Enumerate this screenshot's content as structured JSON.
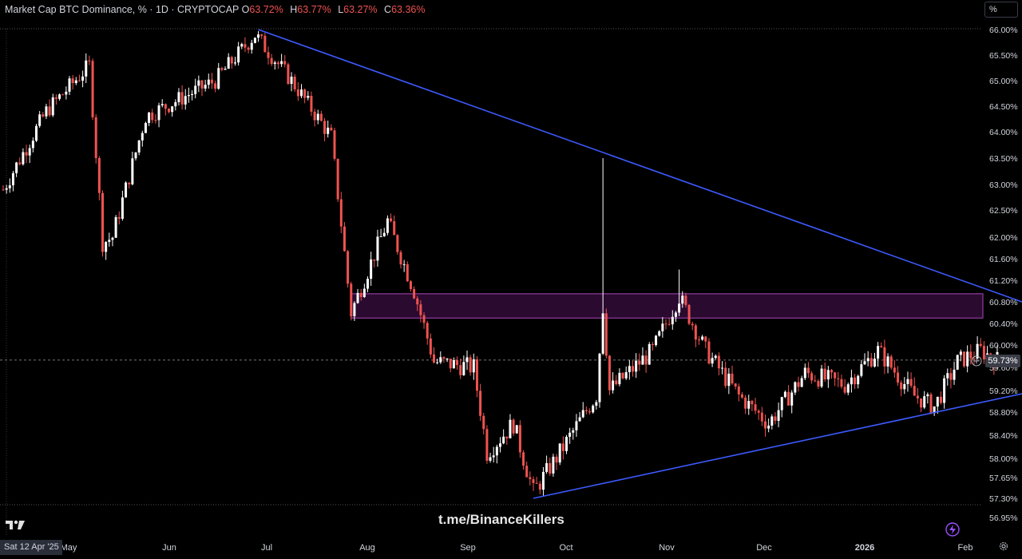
{
  "header": {
    "title": "Market Cap BTC Dominance, % · 1D · CRYPTOCAP",
    "o_label": "O",
    "o_value": "63.72%",
    "h_label": "H",
    "h_value": "63.77%",
    "l_label": "L",
    "l_value": "63.27%",
    "c_label": "C",
    "c_value": "63.36%"
  },
  "scale_button": "%",
  "watermark": "t.me/BinanceKillers",
  "date_badge": "Sat 12 Apr '25",
  "current_price": "59.73%",
  "colors": {
    "up": "#ffffff",
    "down": "#ef5350",
    "trendline": "#3d5afe",
    "zone_fill": "#2a0a2f",
    "zone_border": "#ab47bc",
    "background": "#000000"
  },
  "icons": {
    "logo": "tradingview-logo-icon",
    "flash": "lightning-icon",
    "gear": "gear-icon",
    "crosshair": "plus-circle-icon"
  },
  "chart_data": {
    "type": "candlestick",
    "title": "Market Cap BTC Dominance, % · 1D · CRYPTOCAP",
    "y_unit": "%",
    "ylim": [
      56.95,
      66.0
    ],
    "y_ticks": [
      "66.00%",
      "65.50%",
      "65.00%",
      "64.50%",
      "64.00%",
      "63.50%",
      "63.00%",
      "62.50%",
      "62.00%",
      "61.60%",
      "61.20%",
      "60.80%",
      "60.40%",
      "60.00%",
      "59.60%",
      "59.20%",
      "58.80%",
      "58.40%",
      "58.00%",
      "57.65%",
      "57.30%",
      "56.95%"
    ],
    "x_ticks": [
      "May",
      "Jun",
      "Jul",
      "Aug",
      "Sep",
      "Oct",
      "Nov",
      "Dec",
      "2026",
      "Feb"
    ],
    "grid": false,
    "key_points": [
      {
        "date": "2025-04-12",
        "close": 62.9
      },
      {
        "date": "2025-04-25",
        "close": 64.4
      },
      {
        "date": "2025-05-08",
        "close": 65.3
      },
      {
        "date": "2025-05-12",
        "close": 61.9
      },
      {
        "date": "2025-05-15",
        "close": 62.0
      },
      {
        "date": "2025-05-25",
        "close": 64.3
      },
      {
        "date": "2025-06-15",
        "close": 65.0
      },
      {
        "date": "2025-06-27",
        "close": 65.9
      },
      {
        "date": "2025-07-08",
        "close": 65.0
      },
      {
        "date": "2025-07-20",
        "close": 63.9
      },
      {
        "date": "2025-07-26",
        "close": 60.6
      },
      {
        "date": "2025-08-06",
        "close": 62.3
      },
      {
        "date": "2025-08-14",
        "close": 61.0
      },
      {
        "date": "2025-08-20",
        "close": 59.7
      },
      {
        "date": "2025-09-01",
        "close": 59.6
      },
      {
        "date": "2025-09-05",
        "close": 58.1
      },
      {
        "date": "2025-09-13",
        "close": 58.6
      },
      {
        "date": "2025-09-19",
        "close": 57.4
      },
      {
        "date": "2025-09-27",
        "close": 58.1
      },
      {
        "date": "2025-10-08",
        "close": 59.1
      },
      {
        "date": "2025-10-10",
        "close": 60.7
      },
      {
        "date": "2025-10-12",
        "close": 59.2
      },
      {
        "date": "2025-10-25",
        "close": 59.9
      },
      {
        "date": "2025-11-02",
        "close": 60.9
      },
      {
        "date": "2025-11-10",
        "close": 59.9
      },
      {
        "date": "2025-11-20",
        "close": 59.1
      },
      {
        "date": "2025-11-29",
        "close": 58.6
      },
      {
        "date": "2025-12-10",
        "close": 59.5
      },
      {
        "date": "2025-12-22",
        "close": 59.3
      },
      {
        "date": "2026-01-01",
        "close": 59.9
      },
      {
        "date": "2026-01-12",
        "close": 59.1
      },
      {
        "date": "2026-01-18",
        "close": 58.9
      },
      {
        "date": "2026-01-25",
        "close": 59.7
      },
      {
        "date": "2026-02-01",
        "close": 59.9
      },
      {
        "date": "2026-02-06",
        "close": 59.73
      }
    ],
    "spikes": [
      {
        "date": "2025-10-10",
        "high": 63.5
      },
      {
        "date": "2025-11-02",
        "high": 61.4
      }
    ],
    "annotations": {
      "descending_trendline": {
        "from": {
          "date": "2025-06-28",
          "value": 66.0
        },
        "to": {
          "date": "2026-02-18",
          "value": 60.7
        }
      },
      "ascending_trendline": {
        "from": {
          "date": "2025-09-19",
          "value": 57.3
        },
        "to": {
          "date": "2026-02-18",
          "value": 59.2
        }
      },
      "resistance_zone": {
        "from_date": "2025-07-26",
        "low": 60.5,
        "high": 60.95
      }
    },
    "last_price": 59.73
  }
}
